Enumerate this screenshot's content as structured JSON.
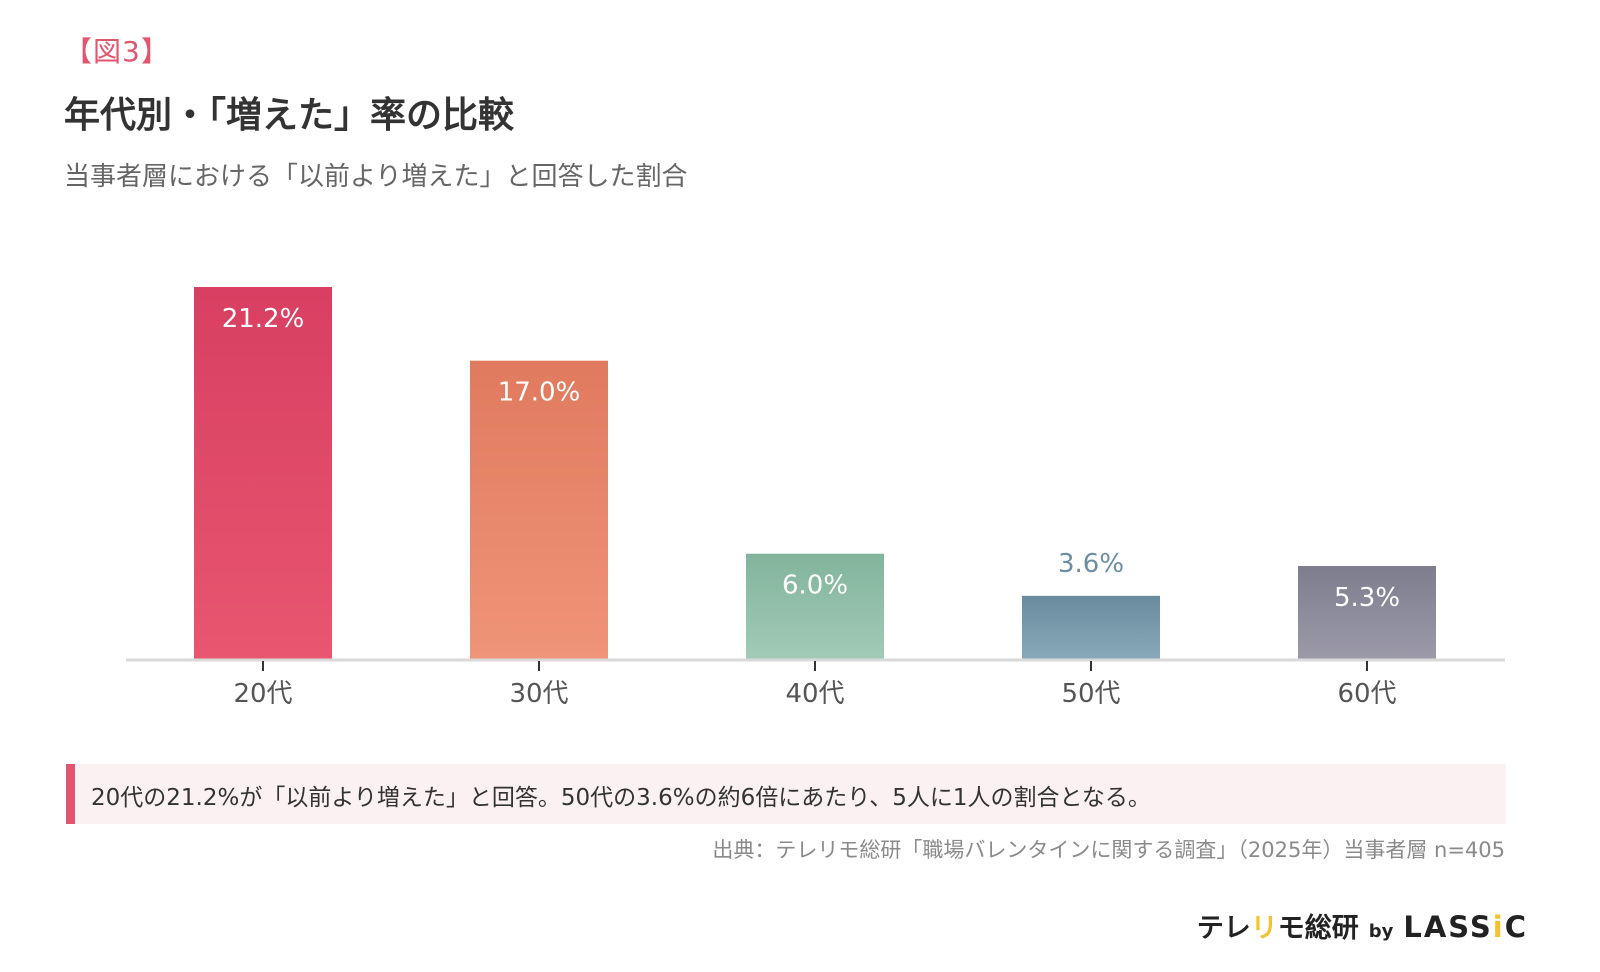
{
  "figure_label": "【図3】",
  "title": "年代別・「増えた」率の比較",
  "subtitle": "当事者層における「以前より増えた」と回答した割合",
  "chart_data": {
    "type": "bar",
    "categories": [
      "20代",
      "30代",
      "40代",
      "50代",
      "60代"
    ],
    "values": [
      21.2,
      17.0,
      6.0,
      3.6,
      5.3
    ],
    "value_labels": [
      "21.2%",
      "17.0%",
      "6.0%",
      "3.6%",
      "5.3%"
    ],
    "ylim": [
      0,
      22
    ],
    "unit": "%",
    "grid": false,
    "colors": [
      {
        "top": "#d83f62",
        "bottom": "#e8566f"
      },
      {
        "top": "#e07a5f",
        "bottom": "#ef9478"
      },
      {
        "top": "#82b49c",
        "bottom": "#a2cab7"
      },
      {
        "top": "#6a8b9e",
        "bottom": "#88a9b9"
      },
      {
        "top": "#7d7d8e",
        "bottom": "#9c9aa9"
      }
    ],
    "label_positions": [
      "inside",
      "inside",
      "inside",
      "above",
      "inside"
    ],
    "above_label_color": "#6b8ea3"
  },
  "callout": {
    "text": "20代の21.2%が「以前より増えた」と回答。50代の3.6%の約6倍にあたり、5人に1人の割合となる。",
    "accent_color": "#e0566e",
    "background_color": "#fcf1f2"
  },
  "source": "出典：テレリモ総研「職場バレンタインに関する調査」（2025年）当事者層 n=405",
  "logo": {
    "part1": "テレ",
    "part2": "リ",
    "part3": "モ総研",
    "by": "by",
    "brand1": "LASS",
    "brand2": "i",
    "brand3": "C"
  }
}
